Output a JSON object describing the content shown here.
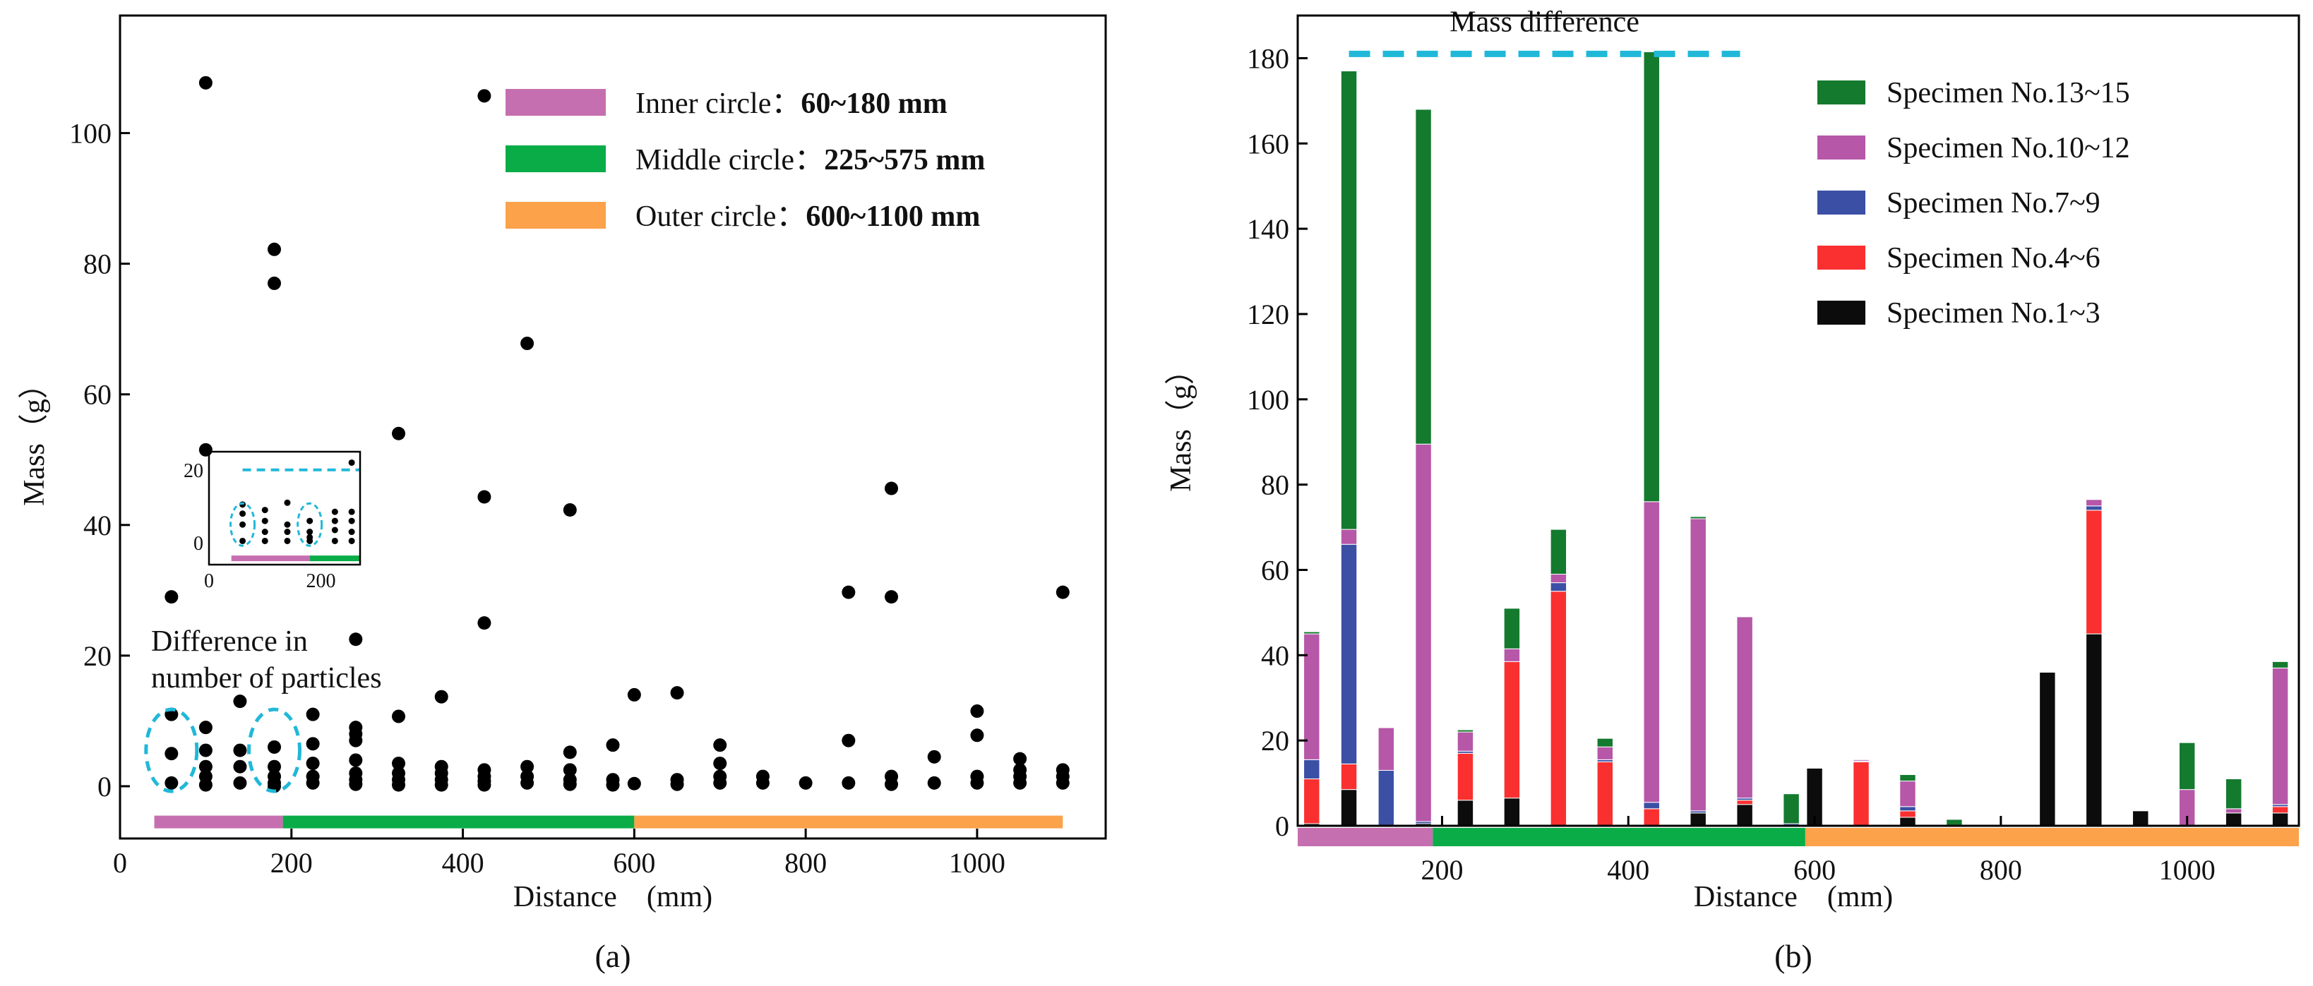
{
  "colors": {
    "inner": "#c66fb0",
    "middle": "#0aac48",
    "outer": "#fba24a",
    "highlight": "#20b8d8",
    "point": "#000000",
    "s13_15": "#147a2e",
    "s10_12": "#b657a8",
    "s7_9": "#3b4fa5",
    "s4_6": "#fa3030",
    "s1_3": "#0c0c0c"
  },
  "chart_data": [
    {
      "id": "a",
      "type": "scatter",
      "caption": "(a)",
      "xlabel": "Distance　(mm)",
      "ylabel": "Mass（g）",
      "xlim": [
        0,
        1150
      ],
      "ylim": [
        -8,
        118
      ],
      "xticks": [
        0,
        200,
        400,
        600,
        800,
        1000
      ],
      "yticks": [
        0,
        20,
        40,
        60,
        80,
        100
      ],
      "legend": [
        {
          "key": "inner",
          "label": "Inner circle：",
          "value": "60~180 mm"
        },
        {
          "key": "middle",
          "label": "Middle circle：",
          "value": "225~575 mm"
        },
        {
          "key": "outer",
          "label": "Outer circle：",
          "value": "600~1100 mm"
        }
      ],
      "annotation": {
        "line1": "Difference in",
        "line2": "number of particles"
      },
      "zones": [
        {
          "key": "inner",
          "from": 40,
          "to": 190
        },
        {
          "key": "middle",
          "from": 190,
          "to": 600
        },
        {
          "key": "outer",
          "from": 600,
          "to": 1100
        }
      ],
      "points": [
        [
          60,
          29
        ],
        [
          60,
          11
        ],
        [
          60,
          5
        ],
        [
          60,
          0.5
        ],
        [
          100,
          107.7
        ],
        [
          100,
          51.5
        ],
        [
          100,
          9
        ],
        [
          100,
          5.5
        ],
        [
          100,
          3
        ],
        [
          100,
          1.5
        ],
        [
          100,
          0.2
        ],
        [
          140,
          13
        ],
        [
          140,
          5.5
        ],
        [
          140,
          3
        ],
        [
          140,
          0.5
        ],
        [
          180,
          82.2
        ],
        [
          180,
          77
        ],
        [
          180,
          6
        ],
        [
          180,
          3
        ],
        [
          180,
          1.5
        ],
        [
          180,
          0.5
        ],
        [
          180,
          0
        ],
        [
          225,
          11
        ],
        [
          225,
          6.5
        ],
        [
          225,
          3.5
        ],
        [
          225,
          1.5
        ],
        [
          225,
          0.5
        ],
        [
          275,
          22.5
        ],
        [
          275,
          9
        ],
        [
          275,
          8
        ],
        [
          275,
          7
        ],
        [
          275,
          4
        ],
        [
          275,
          2
        ],
        [
          275,
          1
        ],
        [
          275,
          0.3
        ],
        [
          325,
          54
        ],
        [
          325,
          10.7
        ],
        [
          325,
          3.5
        ],
        [
          325,
          2
        ],
        [
          325,
          1
        ],
        [
          325,
          0.2
        ],
        [
          375,
          13.7
        ],
        [
          375,
          3
        ],
        [
          375,
          2
        ],
        [
          375,
          1
        ],
        [
          375,
          0.2
        ],
        [
          425,
          105.7
        ],
        [
          425,
          44.3
        ],
        [
          425,
          25
        ],
        [
          425,
          2.5
        ],
        [
          425,
          1.5
        ],
        [
          425,
          0.8
        ],
        [
          425,
          0.2
        ],
        [
          475,
          67.8
        ],
        [
          475,
          3
        ],
        [
          475,
          1.5
        ],
        [
          475,
          0.5
        ],
        [
          525,
          42.3
        ],
        [
          525,
          5.2
        ],
        [
          525,
          2.5
        ],
        [
          525,
          1
        ],
        [
          525,
          0.3
        ],
        [
          575,
          6.3
        ],
        [
          575,
          1
        ],
        [
          575,
          0.2
        ],
        [
          600,
          14
        ],
        [
          600,
          0.4
        ],
        [
          650,
          14.3
        ],
        [
          650,
          1
        ],
        [
          650,
          0.3
        ],
        [
          700,
          6.3
        ],
        [
          700,
          3.5
        ],
        [
          700,
          1.5
        ],
        [
          700,
          0.5
        ],
        [
          750,
          1.5
        ],
        [
          750,
          0.5
        ],
        [
          800,
          0.5
        ],
        [
          850,
          29.7
        ],
        [
          850,
          7
        ],
        [
          850,
          0.5
        ],
        [
          900,
          45.6
        ],
        [
          900,
          29
        ],
        [
          900,
          1.5
        ],
        [
          900,
          0.3
        ],
        [
          950,
          4.5
        ],
        [
          950,
          0.5
        ],
        [
          1000,
          11.5
        ],
        [
          1000,
          7.8
        ],
        [
          1000,
          1.5
        ],
        [
          1000,
          0.5
        ],
        [
          1050,
          4.2
        ],
        [
          1050,
          2.5
        ],
        [
          1050,
          1.5
        ],
        [
          1050,
          0.5
        ],
        [
          1100,
          29.7
        ],
        [
          1100,
          2.5
        ],
        [
          1100,
          1.5
        ],
        [
          1100,
          0.5
        ]
      ],
      "highlight_points": [
        60,
        180
      ],
      "inset": {
        "xlim": [
          0,
          270
        ],
        "ylim": [
          -6,
          25
        ],
        "xticks": [
          0,
          200
        ],
        "yticks": [
          0,
          20
        ],
        "threshold": 20,
        "points": [
          [
            60,
            10.5
          ],
          [
            60,
            8
          ],
          [
            60,
            5
          ],
          [
            60,
            0.5
          ],
          [
            100,
            9
          ],
          [
            100,
            6
          ],
          [
            100,
            3
          ],
          [
            100,
            0.5
          ],
          [
            140,
            11
          ],
          [
            140,
            5
          ],
          [
            140,
            3
          ],
          [
            140,
            0.5
          ],
          [
            180,
            6
          ],
          [
            180,
            3
          ],
          [
            180,
            1.5
          ],
          [
            180,
            0.5
          ],
          [
            225,
            8.5
          ],
          [
            225,
            6
          ],
          [
            225,
            3.5
          ],
          [
            225,
            0.5
          ],
          [
            255,
            22
          ],
          [
            255,
            8.5
          ],
          [
            255,
            6
          ],
          [
            255,
            3
          ],
          [
            255,
            0.5
          ]
        ]
      }
    },
    {
      "id": "b",
      "type": "bar",
      "stacked": true,
      "caption": "(b)",
      "xlabel": "Distance　(mm)",
      "ylabel": "Mass（g）",
      "xlim": [
        45,
        1120
      ],
      "ylim": [
        0,
        190
      ],
      "xticks": [
        200,
        400,
        600,
        800,
        1000
      ],
      "yticks": [
        0,
        20,
        40,
        60,
        80,
        100,
        120,
        140,
        160,
        180
      ],
      "bar_width_mm": 17,
      "annotation": {
        "label": "Mass difference",
        "y": 181,
        "x_from": 100,
        "x_to": 520
      },
      "zones": [
        {
          "key": "inner",
          "from": 45,
          "to": 190
        },
        {
          "key": "middle",
          "from": 190,
          "to": 590
        },
        {
          "key": "outer",
          "from": 590,
          "to": 1120
        }
      ],
      "series": [
        {
          "key": "s1_3",
          "name": "Specimen No.1~3"
        },
        {
          "key": "s4_6",
          "name": "Specimen No.4~6"
        },
        {
          "key": "s7_9",
          "name": "Specimen No.7~9"
        },
        {
          "key": "s10_12",
          "name": "Specimen No.10~12"
        },
        {
          "key": "s13_15",
          "name": "Specimen No.13~15"
        }
      ],
      "legend_order": [
        "s13_15",
        "s10_12",
        "s7_9",
        "s4_6",
        "s1_3"
      ],
      "x": [
        60,
        100,
        140,
        180,
        225,
        275,
        325,
        375,
        425,
        475,
        525,
        575,
        600,
        650,
        700,
        750,
        800,
        850,
        900,
        950,
        1000,
        1050,
        1100
      ],
      "values": {
        "s1_3": [
          0.5,
          8.5,
          0,
          0.5,
          6,
          6.5,
          0,
          0,
          0,
          3,
          5,
          0,
          13.5,
          0,
          2,
          0,
          0,
          36,
          45,
          3.5,
          0,
          3,
          3
        ],
        "s4_6": [
          10.5,
          6,
          0,
          0,
          11,
          32,
          55,
          15,
          4,
          0,
          1,
          0,
          0,
          15,
          1.5,
          0,
          0,
          0,
          29,
          0,
          0,
          0,
          1.5
        ],
        "s7_9": [
          4.5,
          51.5,
          13,
          0.5,
          0.5,
          0,
          2,
          0.5,
          1.5,
          0.5,
          0.5,
          0.5,
          0,
          0.2,
          1,
          0,
          0,
          0,
          1,
          0,
          0,
          0,
          0.5
        ],
        "s10_12": [
          29.5,
          3.5,
          10,
          88.5,
          4.5,
          3,
          2,
          3,
          70.5,
          68.5,
          42.5,
          0,
          0,
          0.3,
          6,
          0,
          0,
          0,
          1.5,
          0,
          8.5,
          1,
          32
        ],
        "s13_15": [
          0.5,
          107.5,
          0,
          78.5,
          0.5,
          9.5,
          10.5,
          2,
          105.5,
          0.5,
          0,
          7,
          0,
          0,
          1.5,
          1.5,
          0,
          0,
          0,
          0,
          11,
          7,
          1.5
        ]
      }
    }
  ]
}
